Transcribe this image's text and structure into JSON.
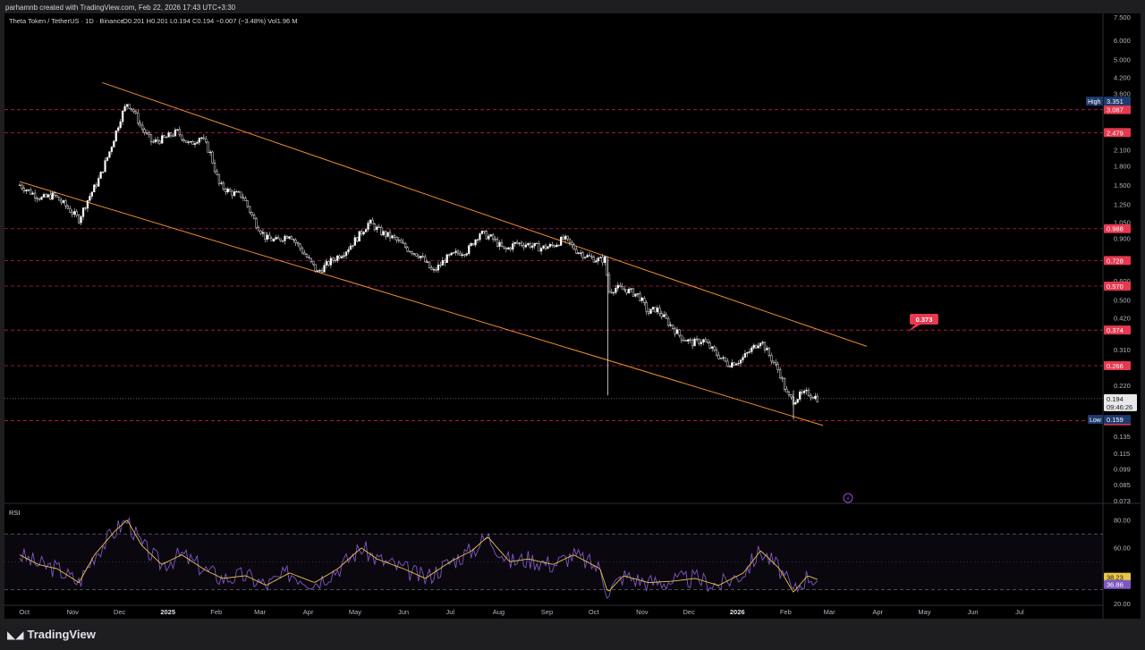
{
  "header": {
    "credit": "parhamnb created with TradingView.com, Feb 22, 2026 17:43 UTC+3:30"
  },
  "chart": {
    "symbol_line": "Theta Token / TetherUS · 1D · Binance",
    "ohlc": "O0.201  H0.201  L0.194  C0.194  −0.007 (−3.48%)  Vol1.96 M",
    "rsi_label": "RSI"
  },
  "footer": {
    "brand": "TradingView"
  },
  "chart_data": [
    {
      "type": "candlestick",
      "title": "Theta Token / TetherUS · 1D · Binance",
      "scale": "log",
      "ylim": [
        0.073,
        7.5
      ],
      "price_axis_ticks": [
        "7.500",
        "6.000",
        "5.000",
        "4.200",
        "3.600",
        "2.100",
        "1.800",
        "1.500",
        "1.250",
        "1.050",
        "0.900",
        "0.600",
        "0.500",
        "0.420",
        "0.310",
        "0.220",
        "0.135",
        "0.115",
        "0.099",
        "0.085",
        "0.073"
      ],
      "x_ticks": [
        "Oct",
        "Nov",
        "Dec",
        "2025",
        "Feb",
        "Mar",
        "Apr",
        "May",
        "Jun",
        "Jul",
        "Aug",
        "Sep",
        "Oct",
        "Nov",
        "Dec",
        "2026",
        "Feb",
        "Mar",
        "Apr",
        "May",
        "Jun",
        "Jul"
      ],
      "horizontal_levels": [
        3.087,
        2.479,
        0.988,
        0.728,
        0.57,
        0.374,
        0.266,
        0.157
      ],
      "high_label": {
        "label": "High",
        "value": "3.351"
      },
      "low_label": {
        "label": "Low",
        "value": "0.159"
      },
      "last_price": {
        "value": "0.194",
        "countdown": "09:46:26"
      },
      "annotation": {
        "value": "0.373"
      },
      "channel": {
        "upper": [
          [
            "2024-11-20",
            4.0
          ],
          [
            "2026-03-25",
            0.32
          ]
        ],
        "lower": [
          [
            "2024-09-28",
            1.55
          ],
          [
            "2026-02-25",
            0.15
          ]
        ]
      },
      "path": [
        [
          "2024-09-28",
          1.5
        ],
        [
          "2024-10-05",
          1.4
        ],
        [
          "2024-10-12",
          1.32
        ],
        [
          "2024-10-20",
          1.36
        ],
        [
          "2024-10-28",
          1.22
        ],
        [
          "2024-11-05",
          1.08
        ],
        [
          "2024-11-10",
          1.28
        ],
        [
          "2024-11-18",
          1.6
        ],
        [
          "2024-11-25",
          2.1
        ],
        [
          "2024-12-02",
          2.9
        ],
        [
          "2024-12-06",
          3.3
        ],
        [
          "2024-12-10",
          3.05
        ],
        [
          "2024-12-15",
          2.6
        ],
        [
          "2024-12-22",
          2.25
        ],
        [
          "2024-12-30",
          2.35
        ],
        [
          "2025-01-07",
          2.5
        ],
        [
          "2025-01-15",
          2.2
        ],
        [
          "2025-01-22",
          2.4
        ],
        [
          "2025-01-28",
          2.05
        ],
        [
          "2025-02-03",
          1.5
        ],
        [
          "2025-02-10",
          1.4
        ],
        [
          "2025-02-18",
          1.35
        ],
        [
          "2025-02-26",
          1.05
        ],
        [
          "2025-03-05",
          0.9
        ],
        [
          "2025-03-12",
          0.88
        ],
        [
          "2025-03-20",
          0.94
        ],
        [
          "2025-03-28",
          0.8
        ],
        [
          "2025-04-07",
          0.65
        ],
        [
          "2025-04-15",
          0.72
        ],
        [
          "2025-04-25",
          0.8
        ],
        [
          "2025-05-02",
          0.9
        ],
        [
          "2025-05-10",
          1.05
        ],
        [
          "2025-05-18",
          0.95
        ],
        [
          "2025-05-26",
          0.9
        ],
        [
          "2025-06-03",
          0.82
        ],
        [
          "2025-06-12",
          0.76
        ],
        [
          "2025-06-20",
          0.65
        ],
        [
          "2025-06-28",
          0.74
        ],
        [
          "2025-07-05",
          0.78
        ],
        [
          "2025-07-12",
          0.8
        ],
        [
          "2025-07-20",
          0.95
        ],
        [
          "2025-07-28",
          0.9
        ],
        [
          "2025-08-05",
          0.8
        ],
        [
          "2025-08-12",
          0.86
        ],
        [
          "2025-08-20",
          0.85
        ],
        [
          "2025-08-28",
          0.82
        ],
        [
          "2025-09-05",
          0.84
        ],
        [
          "2025-09-12",
          0.9
        ],
        [
          "2025-09-20",
          0.8
        ],
        [
          "2025-09-28",
          0.75
        ],
        [
          "2025-10-05",
          0.73
        ],
        [
          "2025-10-09",
          0.74
        ],
        [
          "2025-10-10",
          0.54
        ],
        [
          "2025-10-15",
          0.56
        ],
        [
          "2025-10-22",
          0.55
        ],
        [
          "2025-10-30",
          0.52
        ],
        [
          "2025-11-05",
          0.44
        ],
        [
          "2025-11-10",
          0.46
        ],
        [
          "2025-11-18",
          0.4
        ],
        [
          "2025-11-26",
          0.35
        ],
        [
          "2025-12-03",
          0.33
        ],
        [
          "2025-12-10",
          0.34
        ],
        [
          "2025-12-18",
          0.3
        ],
        [
          "2025-12-26",
          0.27
        ],
        [
          "2026-01-03",
          0.28
        ],
        [
          "2026-01-10",
          0.31
        ],
        [
          "2026-01-16",
          0.34
        ],
        [
          "2026-01-22",
          0.29
        ],
        [
          "2026-01-28",
          0.25
        ],
        [
          "2026-02-02",
          0.2
        ],
        [
          "2026-02-06",
          0.19
        ],
        [
          "2026-02-10",
          0.2
        ],
        [
          "2026-02-15",
          0.205
        ],
        [
          "2026-02-22",
          0.194
        ]
      ]
    },
    {
      "type": "line",
      "title": "RSI",
      "ylim": [
        20,
        90
      ],
      "y_ticks": [
        "80.00",
        "60.00",
        "40.00",
        "20.00"
      ],
      "bands": [
        70,
        30
      ],
      "series": [
        {
          "name": "",
          "color": "#7e57c2",
          "last": "36.86"
        },
        {
          "name": "",
          "color": "#e8c547",
          "last": "38.23"
        }
      ],
      "rsi_path": [
        [
          "2024-09-28",
          55
        ],
        [
          "2024-10-10",
          48
        ],
        [
          "2024-10-22",
          45
        ],
        [
          "2024-11-05",
          35
        ],
        [
          "2024-11-15",
          55
        ],
        [
          "2024-11-28",
          72
        ],
        [
          "2024-12-06",
          80
        ],
        [
          "2024-12-15",
          62
        ],
        [
          "2024-12-28",
          48
        ],
        [
          "2025-01-10",
          55
        ],
        [
          "2025-01-25",
          44
        ],
        [
          "2025-02-05",
          38
        ],
        [
          "2025-02-20",
          40
        ],
        [
          "2025-03-05",
          33
        ],
        [
          "2025-03-20",
          42
        ],
        [
          "2025-04-05",
          35
        ],
        [
          "2025-04-20",
          45
        ],
        [
          "2025-05-05",
          60
        ],
        [
          "2025-05-15",
          52
        ],
        [
          "2025-06-01",
          45
        ],
        [
          "2025-06-15",
          38
        ],
        [
          "2025-07-01",
          50
        ],
        [
          "2025-07-15",
          58
        ],
        [
          "2025-07-25",
          68
        ],
        [
          "2025-08-08",
          50
        ],
        [
          "2025-08-20",
          52
        ],
        [
          "2025-09-05",
          48
        ],
        [
          "2025-09-18",
          55
        ],
        [
          "2025-10-05",
          45
        ],
        [
          "2025-10-10",
          28
        ],
        [
          "2025-10-20",
          40
        ],
        [
          "2025-11-05",
          35
        ],
        [
          "2025-11-20",
          36
        ],
        [
          "2025-12-05",
          38
        ],
        [
          "2025-12-20",
          33
        ],
        [
          "2026-01-05",
          42
        ],
        [
          "2026-01-16",
          58
        ],
        [
          "2026-01-28",
          45
        ],
        [
          "2026-02-06",
          28
        ],
        [
          "2026-02-15",
          40
        ],
        [
          "2026-02-22",
          37
        ]
      ]
    }
  ]
}
